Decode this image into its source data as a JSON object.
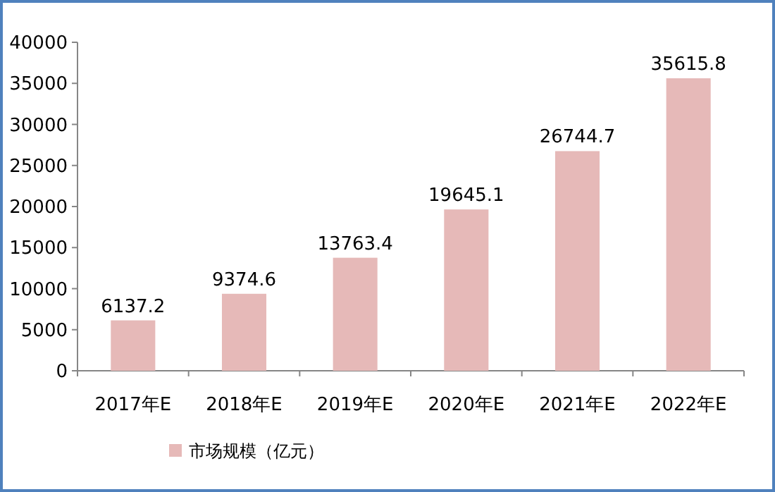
{
  "chart_data": {
    "type": "bar",
    "categories": [
      "2017年E",
      "2018年E",
      "2019年E",
      "2020年E",
      "2021年E",
      "2022年E"
    ],
    "series": [
      {
        "name": "市场规模（亿元）",
        "color": "#e6b9b8",
        "values": [
          6137.2,
          9374.6,
          13763.4,
          19645.1,
          26744.7,
          35615.8
        ]
      }
    ],
    "ylim": [
      0,
      40000
    ],
    "yticks": [
      0,
      5000,
      10000,
      15000,
      20000,
      25000,
      30000,
      35000,
      40000
    ],
    "data_labels": true,
    "legend": "bottom left"
  }
}
